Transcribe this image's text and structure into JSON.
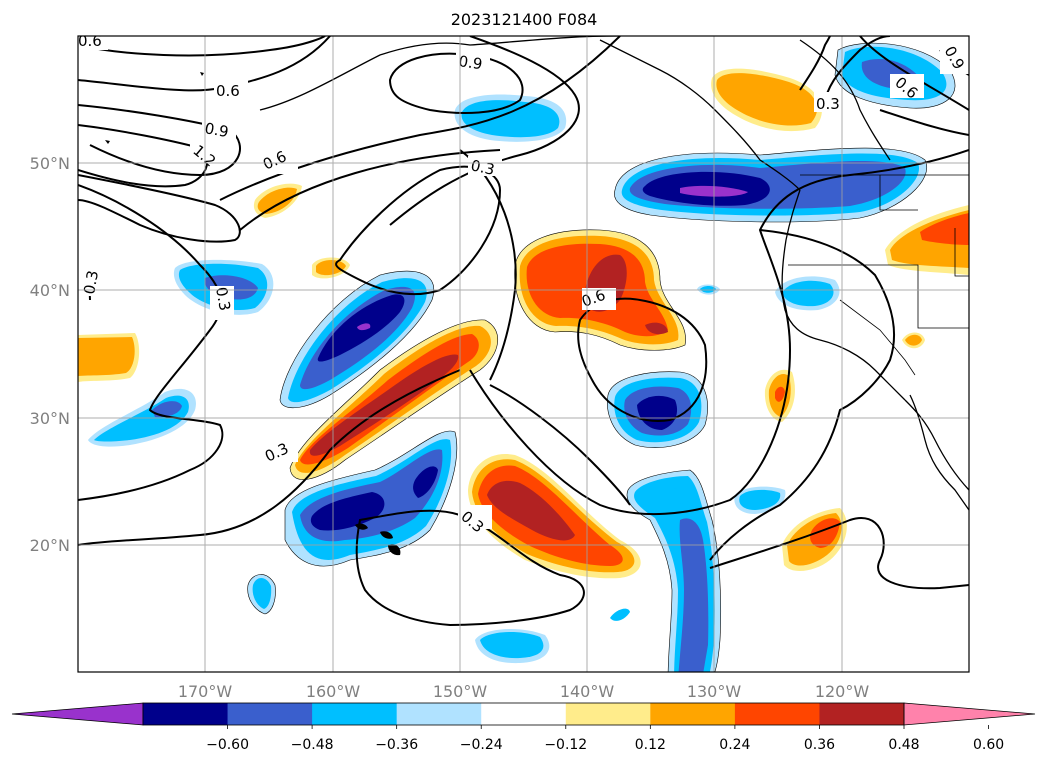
{
  "title": "2023121400 F084",
  "map": {
    "lat_labels": [
      "50°N",
      "40°N",
      "30°N",
      "20°N"
    ],
    "lon_labels": [
      "170°W",
      "160°W",
      "150°W",
      "140°W",
      "130°W",
      "120°W"
    ],
    "contour_labels": [
      "0.6",
      "0.6",
      "0.9",
      "0.9",
      "1.2",
      "0.6",
      "0.3",
      "0.3",
      "0.3",
      "0.3",
      "0.6",
      "0.3",
      "0.3",
      "0.6",
      "0.9"
    ]
  },
  "colorbar": {
    "tick_labels": [
      "−0.60",
      "−0.48",
      "−0.36",
      "−0.24",
      "−0.12",
      "0.12",
      "0.24",
      "0.36",
      "0.48",
      "0.60"
    ],
    "colors": [
      "#9932cc",
      "#00008b",
      "#3a5fcd",
      "#00bfff",
      "#b0e2ff",
      "#ffffff",
      "#ffec8b",
      "#ffa500",
      "#ff4500",
      "#b22222",
      "#ff82ab"
    ]
  }
}
